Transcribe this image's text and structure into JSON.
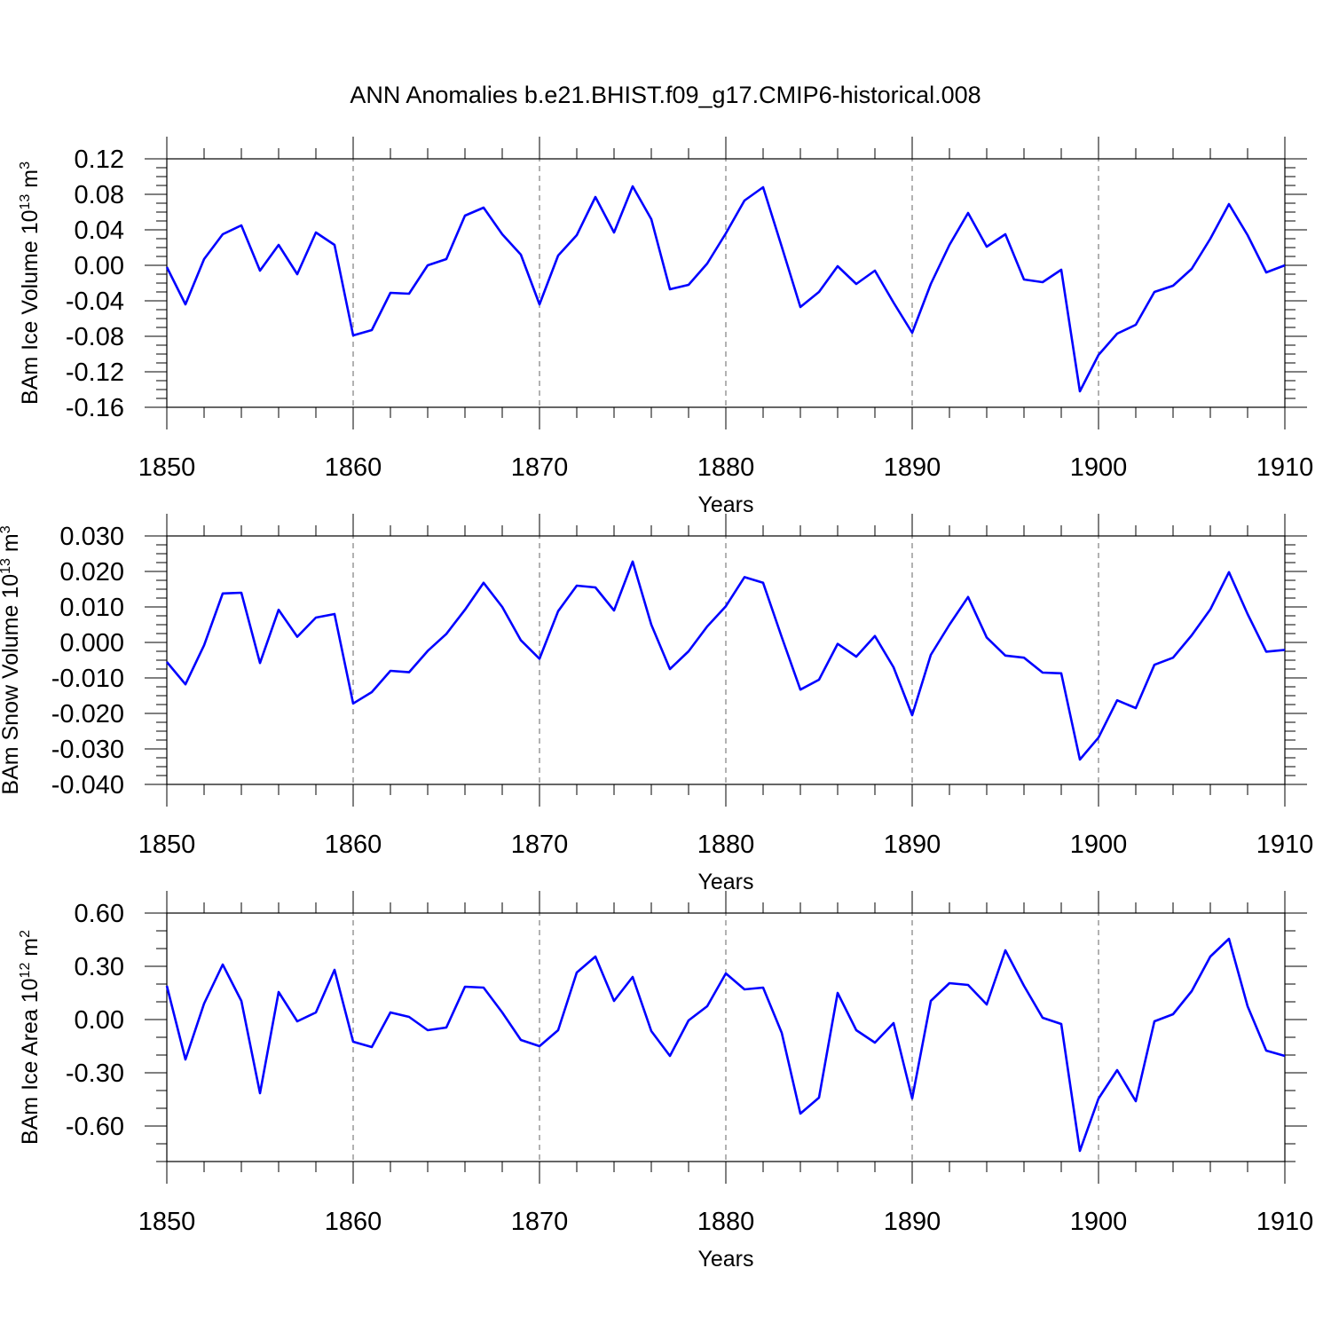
{
  "title": "ANN Anomalies b.e21.BHIST.f09_g17.CMIP6-historical.008",
  "colors": {
    "series": "#0000ff",
    "axis": "#000000",
    "grid": "#666666"
  },
  "chart_data": [
    {
      "type": "line",
      "xlabel": "Years",
      "ylabel": {
        "main": "BAm Ice Volume 10",
        "exp": "13",
        "unit": " m",
        "unit_exp": "3"
      },
      "xlim": [
        1850,
        1910
      ],
      "ylim": [
        -0.16,
        0.12
      ],
      "xticks": [
        1850,
        1860,
        1870,
        1880,
        1890,
        1900,
        1910
      ],
      "yticks": [
        "0.12",
        "0.08",
        "0.04",
        "0.00",
        "-0.04",
        "-0.08",
        "-0.12",
        "-0.16"
      ],
      "grid": "vertical dashed at major x ticks",
      "x": [
        1850,
        1851,
        1852,
        1853,
        1854,
        1855,
        1856,
        1857,
        1858,
        1859,
        1860,
        1861,
        1862,
        1863,
        1864,
        1865,
        1866,
        1867,
        1868,
        1869,
        1870,
        1871,
        1872,
        1873,
        1874,
        1875,
        1876,
        1877,
        1878,
        1879,
        1880,
        1881,
        1882,
        1883,
        1884,
        1885,
        1886,
        1887,
        1888,
        1889,
        1890,
        1891,
        1892,
        1893,
        1894,
        1895,
        1896,
        1897,
        1898,
        1899,
        1900,
        1901,
        1902,
        1903,
        1904,
        1905,
        1906,
        1907,
        1908,
        1909,
        1910
      ],
      "y": [
        -0.002,
        -0.044,
        0.007,
        0.035,
        0.045,
        -0.006,
        0.023,
        -0.01,
        0.037,
        0.023,
        -0.079,
        -0.073,
        -0.031,
        -0.032,
        0.0,
        0.007,
        0.056,
        0.065,
        0.035,
        0.012,
        -0.044,
        0.011,
        0.034,
        0.077,
        0.037,
        0.089,
        0.052,
        -0.027,
        -0.022,
        0.002,
        0.036,
        0.073,
        0.088,
        0.021,
        -0.047,
        -0.03,
        -0.001,
        -0.021,
        -0.006,
        -0.042,
        -0.076,
        -0.021,
        0.023,
        0.059,
        0.021,
        0.035,
        -0.016,
        -0.019,
        -0.005,
        -0.142,
        -0.101,
        -0.077,
        -0.067,
        -0.03,
        -0.023,
        -0.004,
        0.03,
        0.069,
        0.034,
        -0.008,
        0.0
      ]
    },
    {
      "type": "line",
      "xlabel": "Years",
      "ylabel": {
        "main": "BAm Snow Volume 10",
        "exp": "13",
        "unit": " m",
        "unit_exp": "3"
      },
      "xlim": [
        1850,
        1910
      ],
      "ylim": [
        -0.04,
        0.03
      ],
      "xticks": [
        1850,
        1860,
        1870,
        1880,
        1890,
        1900,
        1910
      ],
      "yticks": [
        "0.030",
        "0.020",
        "0.010",
        "0.000",
        "-0.010",
        "-0.020",
        "-0.030",
        "-0.040"
      ],
      "grid": "vertical dashed at major x ticks",
      "x": [
        1850,
        1851,
        1852,
        1853,
        1854,
        1855,
        1856,
        1857,
        1858,
        1859,
        1860,
        1861,
        1862,
        1863,
        1864,
        1865,
        1866,
        1867,
        1868,
        1869,
        1870,
        1871,
        1872,
        1873,
        1874,
        1875,
        1876,
        1877,
        1878,
        1879,
        1880,
        1881,
        1882,
        1883,
        1884,
        1885,
        1886,
        1887,
        1888,
        1889,
        1890,
        1891,
        1892,
        1893,
        1894,
        1895,
        1896,
        1897,
        1898,
        1899,
        1900,
        1901,
        1902,
        1903,
        1904,
        1905,
        1906,
        1907,
        1908,
        1909,
        1910
      ],
      "y": [
        -0.0055,
        -0.0118,
        -0.0008,
        0.0138,
        0.014,
        -0.0058,
        0.0092,
        0.0016,
        0.007,
        0.008,
        -0.0172,
        -0.014,
        -0.008,
        -0.0084,
        -0.0024,
        0.0024,
        0.0092,
        0.0168,
        0.01,
        0.0006,
        -0.0046,
        0.0088,
        0.016,
        0.0155,
        0.009,
        0.0228,
        0.005,
        -0.0075,
        -0.0025,
        0.0045,
        0.0102,
        0.0184,
        0.0168,
        0.0015,
        -0.0133,
        -0.0105,
        -0.0004,
        -0.004,
        0.0018,
        -0.007,
        -0.0205,
        -0.0035,
        0.005,
        0.0128,
        0.0014,
        -0.0037,
        -0.0043,
        -0.0085,
        -0.0087,
        -0.033,
        -0.0268,
        -0.0163,
        -0.0185,
        -0.0063,
        -0.0043,
        0.002,
        0.0093,
        0.0198,
        0.008,
        -0.0026,
        -0.0021
      ]
    },
    {
      "type": "line",
      "xlabel": "Years",
      "ylabel": {
        "main": "BAm Ice Area 10",
        "exp": "12",
        "unit": " m",
        "unit_exp": "2"
      },
      "xlim": [
        1850,
        1910
      ],
      "ylim": [
        -0.8,
        0.6
      ],
      "xticks": [
        1850,
        1860,
        1870,
        1880,
        1890,
        1900,
        1910
      ],
      "yticks": [
        "0.60",
        "0.30",
        "0.00",
        "-0.30",
        "-0.60"
      ],
      "grid": "vertical dashed at major x ticks",
      "x": [
        1850,
        1851,
        1852,
        1853,
        1854,
        1855,
        1856,
        1857,
        1858,
        1859,
        1860,
        1861,
        1862,
        1863,
        1864,
        1865,
        1866,
        1867,
        1868,
        1869,
        1870,
        1871,
        1872,
        1873,
        1874,
        1875,
        1876,
        1877,
        1878,
        1879,
        1880,
        1881,
        1882,
        1883,
        1884,
        1885,
        1886,
        1887,
        1888,
        1889,
        1890,
        1891,
        1892,
        1893,
        1894,
        1895,
        1896,
        1897,
        1898,
        1899,
        1900,
        1901,
        1902,
        1903,
        1904,
        1905,
        1906,
        1907,
        1908,
        1909,
        1910
      ],
      "y": [
        0.19,
        -0.225,
        0.09,
        0.31,
        0.105,
        -0.415,
        0.155,
        -0.01,
        0.04,
        0.28,
        -0.125,
        -0.155,
        0.04,
        0.015,
        -0.06,
        -0.045,
        0.185,
        0.18,
        0.04,
        -0.115,
        -0.15,
        -0.06,
        0.265,
        0.355,
        0.105,
        0.24,
        -0.065,
        -0.205,
        -0.005,
        0.075,
        0.26,
        0.17,
        0.18,
        -0.075,
        -0.53,
        -0.44,
        0.15,
        -0.06,
        -0.13,
        -0.02,
        -0.445,
        0.105,
        0.205,
        0.195,
        0.085,
        0.39,
        0.19,
        0.01,
        -0.025,
        -0.74,
        -0.445,
        -0.285,
        -0.46,
        -0.01,
        0.03,
        0.16,
        0.355,
        0.455,
        0.075,
        -0.175,
        -0.205
      ]
    }
  ]
}
